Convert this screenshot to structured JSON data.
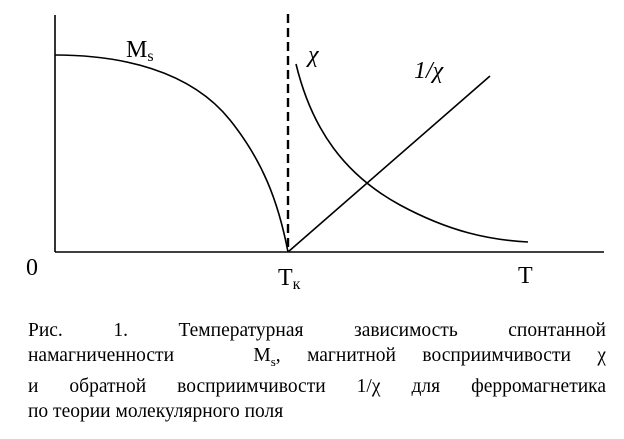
{
  "chart_data": {
    "type": "line",
    "series_labels": {
      "ms": "Ms",
      "ms_sub": "s",
      "chi": "χ",
      "inv_chi": "1/χ"
    },
    "axis_labels": {
      "origin": "0",
      "tc": "T",
      "tc_sub": "к",
      "t": "T"
    },
    "grid": false,
    "legend": "none"
  },
  "caption": {
    "line1": "Рис. 1. Температурная зависимость спонтанной",
    "line2_a": "намагниченности",
    "line2_ms": "M",
    "line2_ms_sub": "s",
    "line2_b": ", магнитной восприимчивости χ",
    "line3": "и обратной восприимчивости 1/χ для ферромагнетика",
    "line4": "по теории молекулярного поля"
  }
}
